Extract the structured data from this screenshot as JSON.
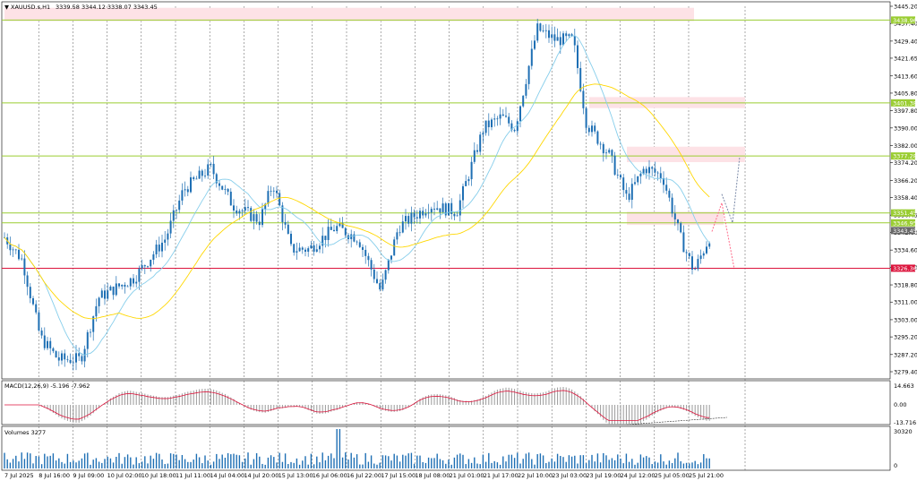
{
  "header": {
    "symbol": "XAUUSD.s,H1",
    "ohlc": "3339.58 3344.12 3338.07 3343.45"
  },
  "macd": {
    "label": "MACD(12,26,9) -5.196 -7.962",
    "axis": [
      "14.663",
      "0.00",
      "-13.716"
    ]
  },
  "volumes": {
    "label": "Volumes 3277",
    "axis": [
      "30320",
      "0"
    ]
  },
  "price_axis": [
    "3445.20",
    "3437.40",
    "3429.40",
    "3421.65",
    "3413.60",
    "3405.80",
    "3397.80",
    "3390.00",
    "3382.00",
    "3374.20",
    "3366.20",
    "3358.40",
    "3350.45",
    "3342.60",
    "3334.60",
    "3326.80",
    "3318.80",
    "3311.00",
    "3303.00",
    "3295.20",
    "3287.20",
    "3279.40"
  ],
  "levels": [
    {
      "price": "3438.96",
      "color": "#9acd32"
    },
    {
      "price": "3401.38",
      "color": "#9acd32"
    },
    {
      "price": "3377.28",
      "color": "#9acd32"
    },
    {
      "price": "3351.45",
      "color": "#9acd32"
    },
    {
      "price": "3346.95",
      "color": "#9acd32"
    },
    {
      "price": "3343.45",
      "color": "#696969"
    },
    {
      "price": "3326.36",
      "color": "#dc143c"
    }
  ],
  "time_axis": [
    "7 Jul 2025",
    "8 Jul 16:00",
    "9 Jul 09:00",
    "10 Jul 02:00",
    "10 Jul 18:00",
    "11 Jul 11:00",
    "14 Jul 04:00",
    "14 Jul 20:00",
    "15 Jul 13:00",
    "16 Jul 06:00",
    "16 Jul 22:00",
    "17 Jul 15:00",
    "18 Jul 08:00",
    "21 Jul 01:00",
    "21 Jul 17:00",
    "22 Jul 10:00",
    "23 Jul 03:00",
    "23 Jul 19:00",
    "24 Jul 12:00",
    "25 Jul 05:00",
    "25 Jul 21:00"
  ],
  "colors": {
    "bull": "#1e6fb4",
    "bear": "#1e6fb4",
    "ma_fast": "#87ceeb",
    "ma_slow": "#ffd700",
    "zone": "#fde2e6",
    "macd_signal": "#dc143c",
    "volume": "#1e6fb4"
  }
}
